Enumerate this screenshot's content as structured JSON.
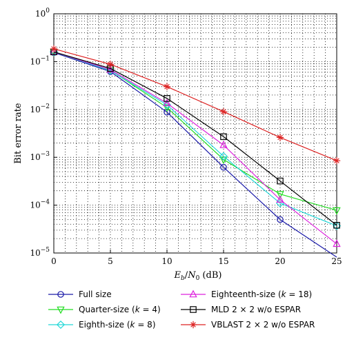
{
  "chart_data": {
    "type": "line",
    "xlabel": "E_b/N_0 (dB)",
    "xlabel_parts": {
      "e": "E",
      "b": "b",
      "slash": "/",
      "n": "N",
      "zero": "0",
      "unit": " (dB)"
    },
    "ylabel": "Bit error rate",
    "xlim": [
      0,
      25
    ],
    "ylim": [
      1e-05,
      1
    ],
    "y_scale": "log",
    "grid": true,
    "legend_position": "below",
    "x_ticks": [
      0,
      5,
      10,
      15,
      20,
      25
    ],
    "x_tick_labels": [
      "0",
      "5",
      "10",
      "15",
      "20",
      "25"
    ],
    "y_ticks": [
      1,
      0.1,
      0.01,
      0.001,
      0.0001,
      1e-05
    ],
    "y_tick_labels": [
      {
        "base": "10",
        "exp": "0"
      },
      {
        "base": "10",
        "exp": "−1"
      },
      {
        "base": "10",
        "exp": "−2"
      },
      {
        "base": "10",
        "exp": "−3"
      },
      {
        "base": "10",
        "exp": "−4"
      },
      {
        "base": "10",
        "exp": "−5"
      }
    ],
    "series": [
      {
        "name": "Full size",
        "color": "#1a1aa8",
        "marker": "circle",
        "x": [
          0,
          5,
          10,
          15,
          20,
          25
        ],
        "y": [
          0.155,
          0.062,
          0.0088,
          0.00062,
          5e-05,
          8.2e-06
        ]
      },
      {
        "name": "Quarter-size (k = 4)",
        "color": "#22dd22",
        "marker": "triangle-down",
        "x": [
          0,
          5,
          10,
          15,
          20,
          25
        ],
        "y": [
          0.16,
          0.066,
          0.011,
          0.0009,
          0.00017,
          7.8e-05
        ]
      },
      {
        "name": "Eighth-size (k = 8)",
        "color": "#22d8d8",
        "marker": "diamond",
        "x": [
          0,
          5,
          10,
          15,
          20,
          25
        ],
        "y": [
          0.16,
          0.065,
          0.0125,
          0.00105,
          0.00011,
          3.7e-05
        ]
      },
      {
        "name": "Eighteenth-size (k = 18)",
        "color": "#dd22dd",
        "marker": "triangle-up",
        "x": [
          0,
          5,
          10,
          15,
          20,
          25
        ],
        "y": [
          0.16,
          0.068,
          0.0135,
          0.0018,
          0.00013,
          1.55e-05
        ]
      },
      {
        "name": "MLD 2 × 2 w/o ESPAR",
        "color": "#000000",
        "marker": "square",
        "x": [
          0,
          5,
          10,
          15,
          20,
          25
        ],
        "y": [
          0.16,
          0.072,
          0.017,
          0.0027,
          0.00032,
          3.8e-05
        ]
      },
      {
        "name": "VBLAST 2 × 2 w/o ESPAR",
        "color": "#dd2222",
        "marker": "star",
        "x": [
          0,
          5,
          10,
          15,
          20,
          25
        ],
        "y": [
          0.185,
          0.088,
          0.03,
          0.009,
          0.0026,
          0.00085
        ]
      }
    ],
    "legend": {
      "rows": [
        [
          {
            "prefix": "Full size",
            "k": "",
            "suffix": ""
          },
          {
            "prefix": "Eighteenth-size (",
            "k": "k",
            "suffix": " = 18)"
          }
        ],
        [
          {
            "prefix": "Quarter-size (",
            "k": "k",
            "suffix": " = 4)"
          },
          {
            "prefix": "MLD 2 × 2 w/o ESPAR",
            "k": "",
            "suffix": ""
          }
        ],
        [
          {
            "prefix": "Eighth-size (",
            "k": "k",
            "suffix": " = 8)"
          },
          {
            "prefix": "VBLAST 2 × 2 w/o ESPAR",
            "k": "",
            "suffix": ""
          }
        ]
      ],
      "order": [
        [
          0,
          3
        ],
        [
          1,
          4
        ],
        [
          2,
          5
        ]
      ]
    }
  }
}
